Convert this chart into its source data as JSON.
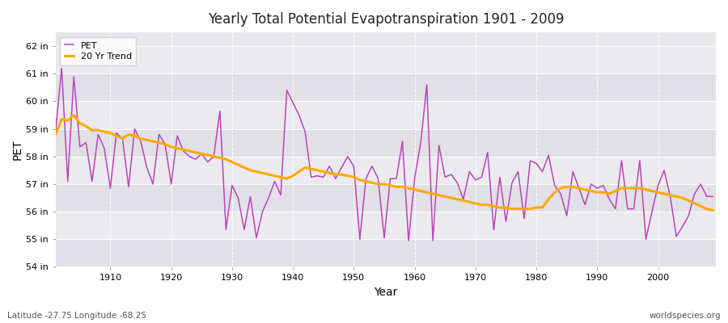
{
  "title": "Yearly Total Potential Evapotranspiration 1901 - 2009",
  "xlabel": "Year",
  "ylabel": "PET",
  "footnote_left": "Latitude -27.75 Longitude -68.25",
  "footnote_right": "worldspecies.org",
  "bg_color": "#ffffff",
  "plot_bg_color": "#e8e8ec",
  "band_color1": "#e0e0e6",
  "band_color2": "#ebebef",
  "pet_color": "#bb44bb",
  "trend_color": "#ffaa00",
  "ylim": [
    54,
    62.5
  ],
  "yticks": [
    54,
    55,
    56,
    57,
    58,
    59,
    60,
    61,
    62
  ],
  "ytick_labels": [
    "54 in",
    "55 in",
    "56 in",
    "57 in",
    "58 in",
    "59 in",
    "60 in",
    "61 in",
    "62 in"
  ],
  "years": [
    1901,
    1902,
    1903,
    1904,
    1905,
    1906,
    1907,
    1908,
    1909,
    1910,
    1911,
    1912,
    1913,
    1914,
    1915,
    1916,
    1917,
    1918,
    1919,
    1920,
    1921,
    1922,
    1923,
    1924,
    1925,
    1926,
    1927,
    1928,
    1929,
    1930,
    1931,
    1932,
    1933,
    1934,
    1935,
    1936,
    1937,
    1938,
    1939,
    1940,
    1941,
    1942,
    1943,
    1944,
    1945,
    1946,
    1947,
    1948,
    1949,
    1950,
    1951,
    1952,
    1953,
    1954,
    1955,
    1956,
    1957,
    1958,
    1959,
    1960,
    1961,
    1962,
    1963,
    1964,
    1965,
    1966,
    1967,
    1968,
    1969,
    1970,
    1971,
    1972,
    1973,
    1974,
    1975,
    1976,
    1977,
    1978,
    1979,
    1980,
    1981,
    1982,
    1983,
    1984,
    1985,
    1986,
    1987,
    1988,
    1989,
    1990,
    1991,
    1992,
    1993,
    1994,
    1995,
    1996,
    1997,
    1998,
    1999,
    2000,
    2001,
    2002,
    2003,
    2004,
    2005,
    2006,
    2007,
    2008,
    2009
  ],
  "pet": [
    58.9,
    61.2,
    57.1,
    60.9,
    58.35,
    58.5,
    57.1,
    58.8,
    58.3,
    56.85,
    58.85,
    58.65,
    56.9,
    59.0,
    58.55,
    57.6,
    57.0,
    58.8,
    58.45,
    57.0,
    58.75,
    58.2,
    58.0,
    57.9,
    58.1,
    57.8,
    58.0,
    59.65,
    55.35,
    56.95,
    56.5,
    55.35,
    56.55,
    55.05,
    56.0,
    56.5,
    57.1,
    56.6,
    60.4,
    59.95,
    59.5,
    58.9,
    57.25,
    57.3,
    57.25,
    57.65,
    57.2,
    57.6,
    58.0,
    57.65,
    55.0,
    57.2,
    57.65,
    57.2,
    55.05,
    57.2,
    57.2,
    58.55,
    54.95,
    57.2,
    58.5,
    60.6,
    54.95,
    58.4,
    57.25,
    57.35,
    57.05,
    56.45,
    57.45,
    57.15,
    57.25,
    58.15,
    55.35,
    57.25,
    55.65,
    57.05,
    57.45,
    55.75,
    57.85,
    57.75,
    57.45,
    58.05,
    56.95,
    56.65,
    55.85,
    57.45,
    56.85,
    56.25,
    57.0,
    56.85,
    56.95,
    56.45,
    56.1,
    57.85,
    56.1,
    56.1,
    57.85,
    55.0,
    56.0,
    56.95,
    57.5,
    56.55,
    55.1,
    55.45,
    55.85,
    56.65,
    57.0,
    56.55,
    56.55
  ],
  "trend": [
    58.8,
    59.35,
    59.3,
    59.5,
    59.2,
    59.1,
    58.95,
    58.95,
    58.9,
    58.85,
    58.75,
    58.65,
    58.8,
    58.75,
    58.65,
    58.6,
    58.55,
    58.5,
    58.45,
    58.35,
    58.3,
    58.25,
    58.2,
    58.15,
    58.1,
    58.05,
    58.0,
    57.95,
    57.9,
    57.8,
    57.7,
    57.6,
    57.5,
    57.45,
    57.4,
    57.35,
    57.3,
    57.25,
    57.2,
    57.3,
    57.45,
    57.6,
    57.55,
    57.5,
    57.45,
    57.4,
    57.35,
    57.35,
    57.3,
    57.25,
    57.15,
    57.1,
    57.05,
    57.0,
    57.0,
    56.95,
    56.9,
    56.9,
    56.85,
    56.8,
    56.75,
    56.7,
    56.65,
    56.6,
    56.55,
    56.5,
    56.45,
    56.4,
    56.35,
    56.3,
    56.25,
    56.25,
    56.2,
    56.15,
    56.15,
    56.1,
    56.1,
    56.1,
    56.1,
    56.15,
    56.15,
    56.45,
    56.7,
    56.85,
    56.9,
    56.9,
    56.85,
    56.8,
    56.75,
    56.7,
    56.7,
    56.65,
    56.75,
    56.85,
    56.85,
    56.85,
    56.85,
    56.8,
    56.75,
    56.7,
    56.65,
    56.6,
    56.55,
    56.5,
    56.4,
    56.3,
    56.2,
    56.1,
    56.05
  ],
  "xticks": [
    1910,
    1920,
    1930,
    1940,
    1950,
    1960,
    1970,
    1980,
    1990,
    2000
  ],
  "xlim": [
    1901,
    2009.5
  ]
}
